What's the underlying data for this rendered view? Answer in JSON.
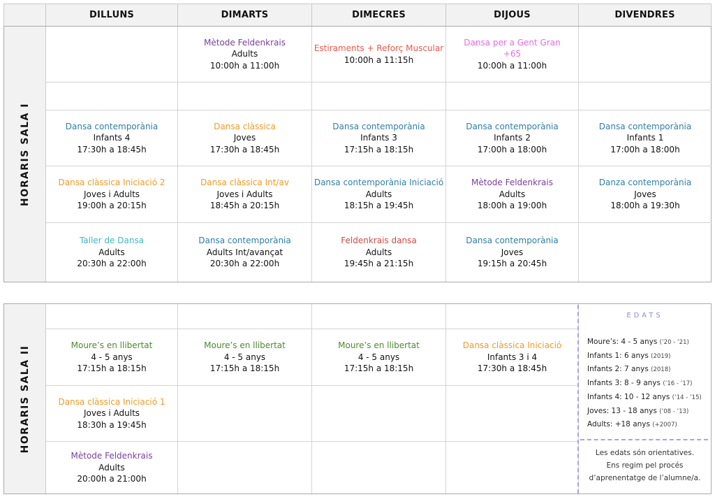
{
  "colors": {
    "blue": "#2f7ea6",
    "orange": "#f09a25",
    "purple": "#7a3e9e",
    "salmon": "#ee5a4f",
    "pink": "#e46be8",
    "teal": "#3cb8c2",
    "red": "#d04a43",
    "green": "#4b8a2e"
  },
  "days": [
    "DILLUNS",
    "DIMARTS",
    "DIMECRES",
    "DIJOUS",
    "DIVENDRES"
  ],
  "sala1": {
    "label": "HORARIS  SALA  I",
    "cells": [
      {
        "col": 1,
        "row": 0,
        "title": "Mètode Feldenkrais",
        "color": "purple",
        "subtitle": "Adults",
        "hours": "10:00h a 11:00h"
      },
      {
        "col": 2,
        "row": 0,
        "title": "Estiraments + Reforç Muscular",
        "color": "salmon",
        "subtitle": "",
        "hours": "10:00h a 11:15h"
      },
      {
        "col": 3,
        "row": 0,
        "title": "Dansa per a Gent Gran\n+65",
        "color": "pink",
        "subtitle": "",
        "hours": "10:00h a 11:00h"
      },
      {
        "col": 0,
        "row": 2,
        "title": "Dansa contemporània",
        "color": "blue",
        "subtitle": "Infants 4",
        "hours": "17:30h a 18:45h"
      },
      {
        "col": 1,
        "row": 2,
        "title": "Dansa clàssica",
        "color": "orange",
        "subtitle": "Joves",
        "hours": "17:30h a 18:45h"
      },
      {
        "col": 2,
        "row": 2,
        "title": "Dansa contemporània",
        "color": "blue",
        "subtitle": "Infants 3",
        "hours": "17:15h a 18:15h"
      },
      {
        "col": 3,
        "row": 2,
        "title": "Dansa contemporània",
        "color": "blue",
        "subtitle": "Infants 2",
        "hours": "17:00h a 18:00h"
      },
      {
        "col": 4,
        "row": 2,
        "title": "Dansa contemporània",
        "color": "blue",
        "subtitle": "Infants 1",
        "hours": "17:00h a 18:00h"
      },
      {
        "col": 0,
        "row": 3,
        "title": "Dansa clàssica Iniciació 2",
        "color": "orange",
        "subtitle": "Joves i Adults",
        "hours": "19:00h a 20:15h"
      },
      {
        "col": 1,
        "row": 3,
        "title": "Dansa clàssica Int/av",
        "color": "orange",
        "subtitle": "Joves i Adults",
        "hours": "18:45h a 20:15h"
      },
      {
        "col": 2,
        "row": 3,
        "title": "Dansa contemporània Iniciació",
        "color": "blue",
        "subtitle": "Adults",
        "hours": "18:15h a 19:45h"
      },
      {
        "col": 3,
        "row": 3,
        "title": "Mètode Feldenkrais",
        "color": "purple",
        "subtitle": "Adults",
        "hours": "18:00h a 19:00h"
      },
      {
        "col": 4,
        "row": 3,
        "title": "Danza contemporània",
        "color": "blue",
        "subtitle": "Joves",
        "hours": "18:00h a 19:30h"
      },
      {
        "col": 0,
        "row": 4,
        "title": "Taller de Dansa",
        "color": "teal",
        "subtitle": "Adults",
        "hours": "20:30h a 22:00h"
      },
      {
        "col": 1,
        "row": 4,
        "title": "Dansa contemporània",
        "color": "blue",
        "subtitle": "Adults Int/avançat",
        "hours": "20:30h a 22:00h"
      },
      {
        "col": 2,
        "row": 4,
        "title": "Feldenkrais dansa",
        "color": "red",
        "subtitle": "Adults",
        "hours": "19:45h a 21:15h"
      },
      {
        "col": 3,
        "row": 4,
        "title": "Dansa contemporània",
        "color": "blue",
        "subtitle": "Joves",
        "hours": "19:15h a 20:45h"
      }
    ]
  },
  "sala2": {
    "label": "HORARIS  SALA  II",
    "cells": [
      {
        "col": 0,
        "row": 1,
        "title": "Moure’s en llibertat",
        "color": "green",
        "subtitle": "4 - 5 anys",
        "hours": "17:15h a 18:15h"
      },
      {
        "col": 1,
        "row": 1,
        "title": "Moure’s en llibertat",
        "color": "green",
        "subtitle": "4 - 5 anys",
        "hours": "17:15h a 18:15h"
      },
      {
        "col": 2,
        "row": 1,
        "title": "Moure’s en llibertat",
        "color": "green",
        "subtitle": "4 - 5 anys",
        "hours": "17:15h a 18:15h"
      },
      {
        "col": 3,
        "row": 1,
        "title": "Dansa clàssica Iniciació",
        "color": "orange",
        "subtitle": "Infants 3 i 4",
        "hours": "17:30h a 18:45h"
      },
      {
        "col": 0,
        "row": 2,
        "title": "Dansa clàssica Iniciació 1",
        "color": "orange",
        "subtitle": "Joves i Adults",
        "hours": "18:30h a 19:45h"
      },
      {
        "col": 0,
        "row": 3,
        "title": "Mètode Feldenkrais",
        "color": "purple",
        "subtitle": "Adults",
        "hours": "20:00h a 21:00h"
      }
    ]
  },
  "edats": {
    "title": "EDATS",
    "rows": [
      {
        "label": "Moure’s:",
        "ages": "4 - 5 anys",
        "years": "(’20 - ’21)"
      },
      {
        "label": "Infants 1:",
        "ages": "6 anys",
        "years": "(2019)"
      },
      {
        "label": "Infants 2:",
        "ages": "7 anys",
        "years": "(2018)"
      },
      {
        "label": "Infants 3:",
        "ages": "8 - 9 anys",
        "years": "(’16 - ’17)"
      },
      {
        "label": "Infants 4:",
        "ages": "10 - 12 anys",
        "years": "(’14 - ’15)"
      },
      {
        "label": "Joves:",
        "ages": "13 - 18 anys",
        "years": "(’08 - ’13)"
      },
      {
        "label": "Adults:",
        "ages": "+18 anys",
        "years": "(+2007)"
      }
    ],
    "note": [
      "Les edats són orientatives.",
      "Ens regim pel procés",
      "d’aprenentatge de l’alumne/a."
    ]
  }
}
